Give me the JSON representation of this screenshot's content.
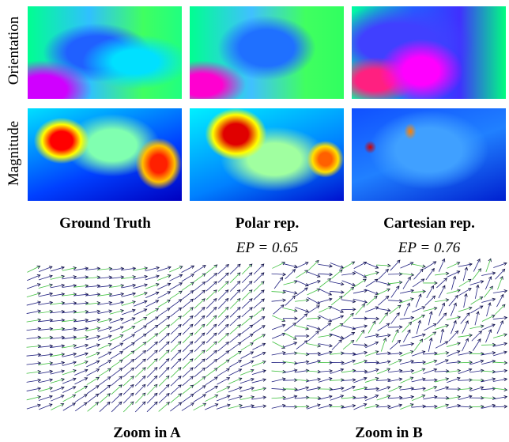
{
  "row_labels": [
    "Orientation",
    "Magnitude"
  ],
  "columns": [
    {
      "label": "Ground Truth"
    },
    {
      "label": "Polar rep.",
      "score": "EP = 0.65"
    },
    {
      "label": "Cartesian rep.",
      "score": "EP = 0.76"
    }
  ],
  "zooms": [
    "Zoom in A",
    "Zoom in B"
  ]
}
